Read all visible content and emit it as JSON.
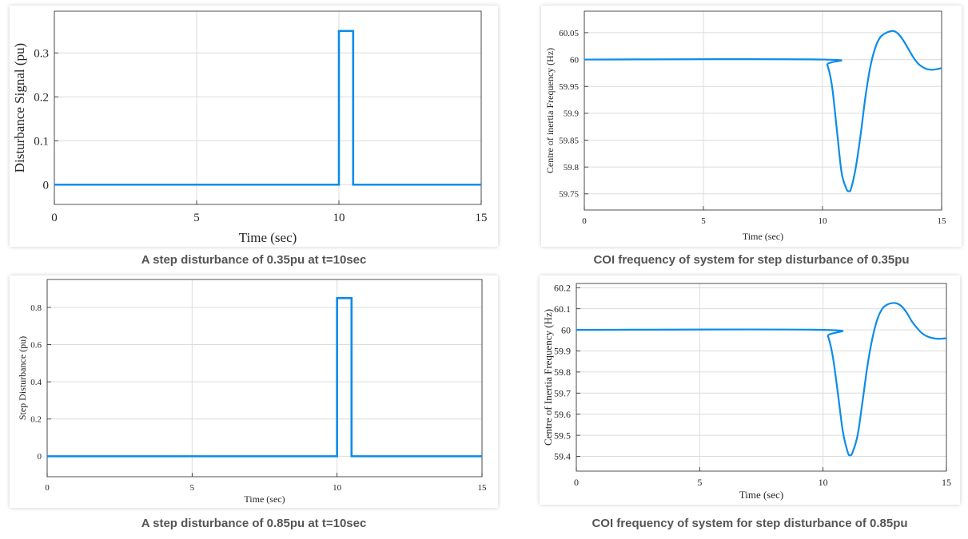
{
  "colors": {
    "series": "#0c8ce9",
    "grid": "#dcdcdc",
    "axis": "#262626",
    "caption": "#555555"
  },
  "captions": [
    "A step disturbance of 0.35pu at t=10sec",
    "COI frequency of system for step disturbance of 0.35pu",
    "A step disturbance of 0.85pu at t=10sec",
    "COI frequency of system for step disturbance of 0.85pu"
  ],
  "chart_data": [
    {
      "type": "line",
      "title": "",
      "xlabel": "Time (sec)",
      "ylabel": "Disturbance Signal (pu)",
      "xlim": [
        0,
        15
      ],
      "ylim": [
        -0.045,
        0.395
      ],
      "xticks": [
        0,
        5,
        10,
        15
      ],
      "yticks": [
        0,
        0.1,
        0.2,
        0.3
      ],
      "grid": true,
      "series": [
        {
          "x": [
            0,
            10,
            10,
            10.5,
            10.5,
            15
          ],
          "y": [
            0,
            0,
            0.35,
            0.35,
            0,
            0
          ]
        }
      ]
    },
    {
      "type": "line",
      "title": "",
      "xlabel": "Time (sec)",
      "ylabel": "Centre of inertia Frequency (Hz)",
      "xlim": [
        0,
        15
      ],
      "ylim": [
        59.72,
        60.09
      ],
      "xticks": [
        0,
        5,
        10,
        15
      ],
      "yticks": [
        59.75,
        59.8,
        59.85,
        59.9,
        59.95,
        60,
        60.05
      ],
      "grid": true,
      "series": [
        {
          "x": [
            0,
            10,
            10.2,
            10.4,
            10.6,
            10.8,
            11.0,
            11.1,
            11.2,
            11.4,
            11.6,
            11.8,
            12.0,
            12.2,
            12.4,
            12.6,
            12.8,
            13.0,
            13.2,
            13.4,
            13.6,
            13.8,
            14.0,
            14.2,
            14.4,
            14.6,
            14.8,
            15.0
          ],
          "y": [
            60,
            60,
            59.99,
            59.95,
            59.87,
            59.79,
            59.76,
            59.755,
            59.76,
            59.8,
            59.86,
            59.93,
            59.985,
            60.02,
            60.04,
            60.048,
            60.052,
            60.053,
            60.047,
            60.035,
            60.02,
            60.005,
            59.993,
            59.986,
            59.982,
            59.981,
            59.982,
            59.984
          ]
        }
      ]
    },
    {
      "type": "line",
      "title": "",
      "xlabel": "Time (sec)",
      "ylabel": "Step Disturbance (pu)",
      "xlim": [
        0,
        15
      ],
      "ylim": [
        -0.11,
        0.95
      ],
      "xticks": [
        0,
        5,
        10,
        15
      ],
      "yticks": [
        0,
        0.2,
        0.4,
        0.6,
        0.8
      ],
      "grid": true,
      "series": [
        {
          "x": [
            0,
            10,
            10,
            10.5,
            10.5,
            15
          ],
          "y": [
            0,
            0,
            0.85,
            0.85,
            0,
            0
          ]
        }
      ]
    },
    {
      "type": "line",
      "title": "",
      "xlabel": "Time (sec)",
      "ylabel": "Centre of Inertia Frequency (Hz)",
      "xlim": [
        0,
        15
      ],
      "ylim": [
        59.33,
        60.22
      ],
      "xticks": [
        0,
        5,
        10,
        15
      ],
      "yticks": [
        59.4,
        59.5,
        59.6,
        59.7,
        59.8,
        59.9,
        60,
        60.1,
        60.2
      ],
      "grid": true,
      "series": [
        {
          "x": [
            0,
            10,
            10.2,
            10.4,
            10.6,
            10.8,
            11.0,
            11.1,
            11.2,
            11.4,
            11.6,
            11.8,
            12.0,
            12.2,
            12.4,
            12.6,
            12.8,
            13.0,
            13.2,
            13.4,
            13.6,
            13.8,
            14.0,
            14.2,
            14.4,
            14.6,
            14.8,
            15.0
          ],
          "y": [
            60,
            60,
            59.97,
            59.87,
            59.7,
            59.52,
            59.42,
            59.405,
            59.42,
            59.5,
            59.66,
            59.83,
            59.96,
            60.05,
            60.1,
            60.12,
            60.127,
            60.125,
            60.11,
            60.08,
            60.04,
            60.01,
            59.985,
            59.97,
            59.962,
            59.958,
            59.958,
            59.96
          ]
        }
      ]
    }
  ]
}
